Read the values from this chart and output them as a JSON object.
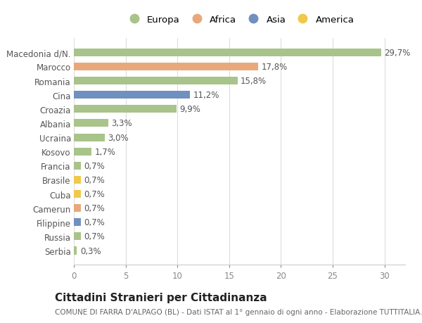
{
  "title": "Cittadini Stranieri per Cittadinanza",
  "subtitle": "COMUNE DI FARRA D'ALPAGO (BL) - Dati ISTAT al 1° gennaio di ogni anno - Elaborazione TUTTITALIA.IT",
  "categories": [
    "Serbia",
    "Russia",
    "Filippine",
    "Camerun",
    "Cuba",
    "Brasile",
    "Francia",
    "Kosovo",
    "Ucraina",
    "Albania",
    "Croazia",
    "Cina",
    "Romania",
    "Marocco",
    "Macedonia d/N."
  ],
  "values": [
    0.3,
    0.7,
    0.7,
    0.7,
    0.7,
    0.7,
    0.7,
    1.7,
    3.0,
    3.3,
    9.9,
    11.2,
    15.8,
    17.8,
    29.7
  ],
  "labels": [
    "0,3%",
    "0,7%",
    "0,7%",
    "0,7%",
    "0,7%",
    "0,7%",
    "0,7%",
    "1,7%",
    "3,0%",
    "3,3%",
    "9,9%",
    "11,2%",
    "15,8%",
    "17,8%",
    "29,7%"
  ],
  "continents": [
    "Europa",
    "Europa",
    "Asia",
    "Africa",
    "America",
    "America",
    "Europa",
    "Europa",
    "Europa",
    "Europa",
    "Europa",
    "Asia",
    "Europa",
    "Africa",
    "Europa"
  ],
  "continent_colors": {
    "Europa": "#a8c48a",
    "Africa": "#e8a87c",
    "Asia": "#7090c0",
    "America": "#f0c84a"
  },
  "legend_order": [
    "Europa",
    "Africa",
    "Asia",
    "America"
  ],
  "legend_colors": [
    "#a8c48a",
    "#e8a87c",
    "#7090c0",
    "#f0c84a"
  ],
  "xlim": [
    0,
    32
  ],
  "xticks": [
    0,
    5,
    10,
    15,
    20,
    25,
    30
  ],
  "background_color": "#ffffff",
  "plot_bg_color": "#ffffff",
  "grid_color": "#dddddd",
  "bar_height": 0.55,
  "title_fontsize": 11,
  "subtitle_fontsize": 7.5,
  "tick_fontsize": 8.5,
  "label_fontsize": 8.5,
  "legend_fontsize": 9.5
}
